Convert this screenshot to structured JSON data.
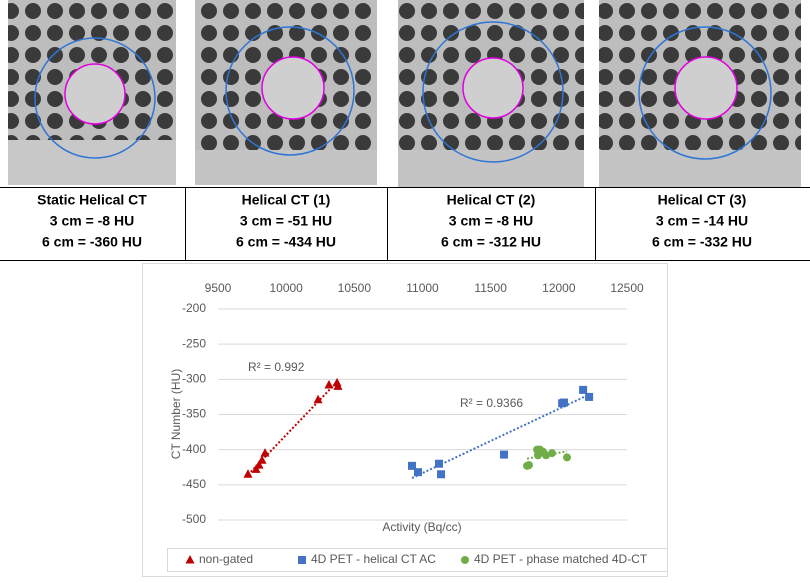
{
  "panels": [
    {
      "title": "Static Helical CT",
      "line1": "3 cm = -8 HU",
      "line2": "6 cm = -360 HU"
    },
    {
      "title": "Helical CT (1)",
      "line1": "3 cm = -51 HU",
      "line2": "6 cm = -434 HU"
    },
    {
      "title": "Helical CT (2)",
      "line1": "3 cm = -8 HU",
      "line2": "6 cm = -312 HU"
    },
    {
      "title": "Helical CT (3)",
      "line1": "3 cm = -14 HU",
      "line2": "6 cm = -332 HU"
    }
  ],
  "chart_data": {
    "type": "scatter",
    "xlabel": "Activity (Bq/cc)",
    "ylabel": "CT Number (HU)",
    "xlim": [
      9500,
      12500
    ],
    "xticks": [
      9500,
      10000,
      10500,
      11000,
      11500,
      12000,
      12500
    ],
    "ylim": [
      -500,
      -200
    ],
    "yticks": [
      -200,
      -250,
      -300,
      -350,
      -400,
      -450,
      -500
    ],
    "grid": true,
    "trendline": true,
    "legend": "bottom",
    "annotations": [
      "R² = 0.992",
      "R² = 0.9366"
    ],
    "series": [
      {
        "name": "non-gated",
        "color": "#c00000",
        "marker": "triangle",
        "x": [
          9720,
          9779,
          9801,
          9823,
          9845,
          10234,
          10314,
          10373,
          10380
        ],
        "values": [
          -435,
          -428,
          -422,
          -415,
          -405,
          -329,
          -308,
          -305,
          -310
        ]
      },
      {
        "name": "4D PET - helical CT AC",
        "color": "#4472c4",
        "marker": "square",
        "x": [
          10923,
          10967,
          11121,
          11136,
          11598,
          12024,
          12038,
          12178,
          12222
        ],
        "values": [
          -423,
          -432,
          -420,
          -435,
          -407,
          -334,
          -333,
          -315,
          -325
        ]
      },
      {
        "name": "4D PET - phase matched 4D-CT",
        "color": "#70ad47",
        "marker": "circle",
        "x": [
          11767,
          11781,
          11840,
          11847,
          11862,
          11884,
          11906,
          11950,
          12060
        ],
        "values": [
          -423,
          -422,
          -400,
          -408,
          -400,
          -403,
          -408,
          -405,
          -411
        ]
      }
    ]
  }
}
